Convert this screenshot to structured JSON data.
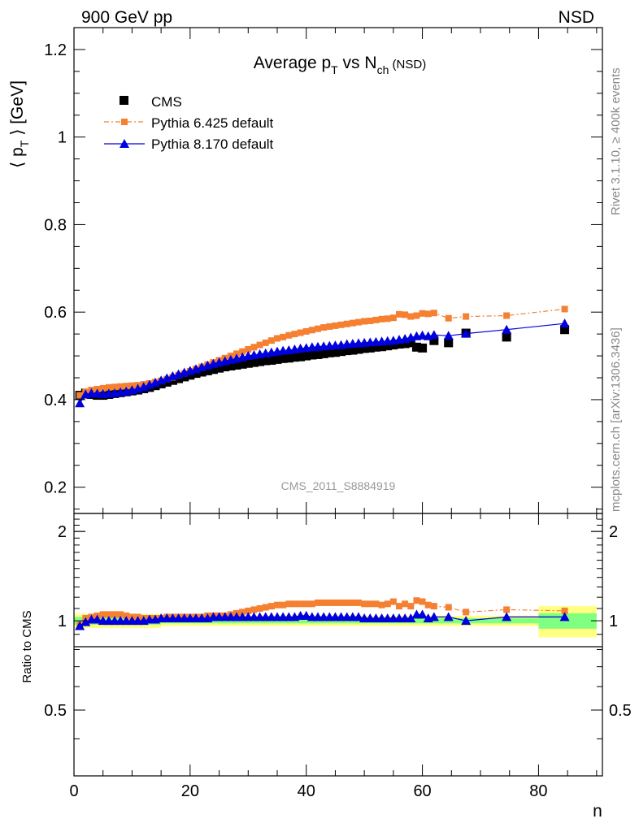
{
  "header": {
    "left": "900 GeV pp",
    "right": "NSD"
  },
  "side_labels": {
    "rivet": "Rivet 3.1.10, ≥ 400k events",
    "mcplots": "mcplots.cern.ch [arXiv:1306.3436]"
  },
  "analysis_id": "CMS_2011_S8884919",
  "chart_data": [
    {
      "type": "scatter",
      "title": "Average p_T vs N_ch (NSD)",
      "ylabel": "⟨ p_T ⟩ [GeV]",
      "xlim": [
        0,
        91
      ],
      "ylim": [
        0.14,
        1.25
      ],
      "yticks": [
        "0.2",
        "0.4",
        "0.6",
        "0.8",
        "1",
        "1.2"
      ],
      "legend_position": "top-left",
      "series": [
        {
          "name": "CMS",
          "color": "#000000",
          "marker": "square",
          "x": [
            1,
            2,
            3,
            4,
            5,
            6,
            7,
            8,
            9,
            10,
            11,
            12,
            13,
            14,
            15,
            16,
            17,
            18,
            19,
            20,
            21,
            22,
            23,
            24,
            25,
            26,
            27,
            28,
            29,
            30,
            31,
            32,
            33,
            34,
            35,
            36,
            37,
            38,
            39,
            40,
            41,
            42,
            43,
            44,
            45,
            46,
            47,
            48,
            49,
            50,
            51,
            52,
            53,
            54,
            55,
            56,
            57,
            58,
            59,
            60,
            62,
            64.5,
            67.5,
            74.5,
            84.5
          ],
          "values": [
            0.41,
            0.415,
            0.412,
            0.41,
            0.41,
            0.412,
            0.414,
            0.416,
            0.418,
            0.42,
            0.422,
            0.425,
            0.428,
            0.432,
            0.436,
            0.44,
            0.444,
            0.448,
            0.452,
            0.456,
            0.46,
            0.463,
            0.466,
            0.469,
            0.472,
            0.475,
            0.477,
            0.479,
            0.481,
            0.483,
            0.485,
            0.487,
            0.489,
            0.49,
            0.492,
            0.494,
            0.495,
            0.497,
            0.498,
            0.5,
            0.502,
            0.503,
            0.505,
            0.507,
            0.508,
            0.51,
            0.512,
            0.513,
            0.515,
            0.517,
            0.518,
            0.52,
            0.521,
            0.523,
            0.525,
            0.527,
            0.528,
            0.53,
            0.52,
            0.518,
            0.535,
            0.53,
            0.552,
            0.543,
            0.56
          ]
        },
        {
          "name": "Pythia 6.425 default",
          "color": "#f58032",
          "marker": "square",
          "line": "dash-dot",
          "x": [
            1,
            2,
            3,
            4,
            5,
            6,
            7,
            8,
            9,
            10,
            11,
            12,
            13,
            14,
            15,
            16,
            17,
            18,
            19,
            20,
            21,
            22,
            23,
            24,
            25,
            26,
            27,
            28,
            29,
            30,
            31,
            32,
            33,
            34,
            35,
            36,
            37,
            38,
            39,
            40,
            41,
            42,
            43,
            44,
            45,
            46,
            47,
            48,
            49,
            50,
            51,
            52,
            53,
            54,
            55,
            56,
            57,
            58,
            59,
            60,
            61,
            62,
            64.5,
            67.5,
            74.5,
            84.5
          ],
          "values": [
            0.41,
            0.418,
            0.422,
            0.424,
            0.426,
            0.428,
            0.429,
            0.43,
            0.431,
            0.432,
            0.433,
            0.435,
            0.437,
            0.44,
            0.443,
            0.447,
            0.451,
            0.456,
            0.46,
            0.465,
            0.47,
            0.475,
            0.48,
            0.485,
            0.49,
            0.495,
            0.5,
            0.505,
            0.51,
            0.515,
            0.52,
            0.525,
            0.53,
            0.535,
            0.54,
            0.543,
            0.547,
            0.55,
            0.553,
            0.556,
            0.559,
            0.562,
            0.565,
            0.567,
            0.569,
            0.571,
            0.573,
            0.575,
            0.577,
            0.579,
            0.58,
            0.582,
            0.584,
            0.585,
            0.587,
            0.595,
            0.594,
            0.59,
            0.592,
            0.597,
            0.596,
            0.598,
            0.586,
            0.59,
            0.592,
            0.607
          ]
        },
        {
          "name": "Pythia 8.170 default",
          "color": "#0000dd",
          "marker": "triangle",
          "line": "solid",
          "x": [
            1,
            2,
            3,
            4,
            5,
            6,
            7,
            8,
            9,
            10,
            11,
            12,
            13,
            14,
            15,
            16,
            17,
            18,
            19,
            20,
            21,
            22,
            23,
            24,
            25,
            26,
            27,
            28,
            29,
            30,
            31,
            32,
            33,
            34,
            35,
            36,
            37,
            38,
            39,
            40,
            41,
            42,
            43,
            44,
            45,
            46,
            47,
            48,
            49,
            50,
            51,
            52,
            53,
            54,
            55,
            56,
            57,
            58,
            59,
            60,
            61,
            62,
            64.5,
            67.5,
            74.5,
            84.5
          ],
          "values": [
            0.392,
            0.412,
            0.415,
            0.414,
            0.413,
            0.414,
            0.415,
            0.417,
            0.419,
            0.422,
            0.425,
            0.429,
            0.434,
            0.439,
            0.444,
            0.449,
            0.454,
            0.458,
            0.462,
            0.466,
            0.47,
            0.474,
            0.478,
            0.482,
            0.485,
            0.488,
            0.491,
            0.494,
            0.497,
            0.5,
            0.502,
            0.504,
            0.506,
            0.508,
            0.51,
            0.512,
            0.513,
            0.515,
            0.517,
            0.518,
            0.52,
            0.521,
            0.522,
            0.523,
            0.524,
            0.525,
            0.527,
            0.528,
            0.529,
            0.53,
            0.531,
            0.532,
            0.533,
            0.534,
            0.535,
            0.537,
            0.539,
            0.542,
            0.545,
            0.547,
            0.545,
            0.548,
            0.546,
            0.551,
            0.56,
            0.574
          ]
        }
      ]
    },
    {
      "type": "line",
      "ylabel": "Ratio to CMS",
      "xlabel": "n",
      "xlim": [
        0,
        91
      ],
      "ylim": [
        0.3,
        2.3
      ],
      "yticks": [
        "0.5",
        "1",
        "2"
      ],
      "xticks": [
        "0",
        "20",
        "40",
        "60",
        "80"
      ],
      "log_y": true,
      "band_inner_color": "#80ff80",
      "band_outer_color": "#ffff80",
      "series": [
        {
          "name": "Pythia 6.425 default",
          "color": "#f58032",
          "x": [
            1,
            2,
            3,
            4,
            5,
            6,
            7,
            8,
            9,
            10,
            11,
            12,
            13,
            14,
            15,
            16,
            17,
            18,
            19,
            20,
            21,
            22,
            23,
            24,
            25,
            26,
            27,
            28,
            29,
            30,
            31,
            32,
            33,
            34,
            35,
            36,
            37,
            38,
            39,
            40,
            41,
            42,
            43,
            44,
            45,
            46,
            47,
            48,
            49,
            50,
            51,
            52,
            53,
            54,
            55,
            56,
            57,
            58,
            59,
            60,
            61,
            62,
            64.5,
            67.5,
            74.5,
            84.5
          ],
          "values": [
            0.97,
            1.02,
            1.03,
            1.04,
            1.05,
            1.05,
            1.05,
            1.05,
            1.04,
            1.03,
            1.03,
            1.02,
            1.02,
            1.02,
            1.02,
            1.03,
            1.03,
            1.03,
            1.03,
            1.03,
            1.03,
            1.03,
            1.04,
            1.04,
            1.04,
            1.04,
            1.05,
            1.06,
            1.07,
            1.08,
            1.09,
            1.1,
            1.11,
            1.12,
            1.13,
            1.13,
            1.14,
            1.14,
            1.14,
            1.14,
            1.14,
            1.15,
            1.15,
            1.15,
            1.15,
            1.15,
            1.15,
            1.15,
            1.15,
            1.14,
            1.14,
            1.14,
            1.13,
            1.14,
            1.16,
            1.12,
            1.14,
            1.12,
            1.17,
            1.16,
            1.13,
            1.12,
            1.11,
            1.07,
            1.09,
            1.08
          ]
        },
        {
          "name": "Pythia 8.170 default",
          "color": "#0000dd",
          "x": [
            1,
            2,
            3,
            4,
            5,
            6,
            7,
            8,
            9,
            10,
            11,
            12,
            13,
            14,
            15,
            16,
            17,
            18,
            19,
            20,
            21,
            22,
            23,
            24,
            25,
            26,
            27,
            28,
            29,
            30,
            31,
            32,
            33,
            34,
            35,
            36,
            37,
            38,
            39,
            40,
            41,
            42,
            43,
            44,
            45,
            46,
            47,
            48,
            49,
            50,
            51,
            52,
            53,
            54,
            55,
            56,
            57,
            58,
            59,
            60,
            61,
            62,
            64.5,
            67.5,
            74.5,
            84.5
          ],
          "values": [
            0.96,
            0.99,
            1.01,
            1.01,
            1.0,
            1.0,
            1.0,
            1.0,
            1.0,
            1.0,
            1.0,
            1.0,
            1.01,
            1.01,
            1.02,
            1.02,
            1.02,
            1.02,
            1.02,
            1.02,
            1.02,
            1.02,
            1.02,
            1.03,
            1.03,
            1.03,
            1.03,
            1.03,
            1.03,
            1.03,
            1.03,
            1.03,
            1.03,
            1.03,
            1.03,
            1.03,
            1.03,
            1.03,
            1.04,
            1.04,
            1.03,
            1.03,
            1.03,
            1.03,
            1.03,
            1.03,
            1.03,
            1.03,
            1.03,
            1.02,
            1.02,
            1.02,
            1.02,
            1.02,
            1.02,
            1.02,
            1.02,
            1.02,
            1.05,
            1.05,
            1.02,
            1.03,
            1.03,
            1.0,
            1.03,
            1.03
          ]
        }
      ]
    }
  ]
}
